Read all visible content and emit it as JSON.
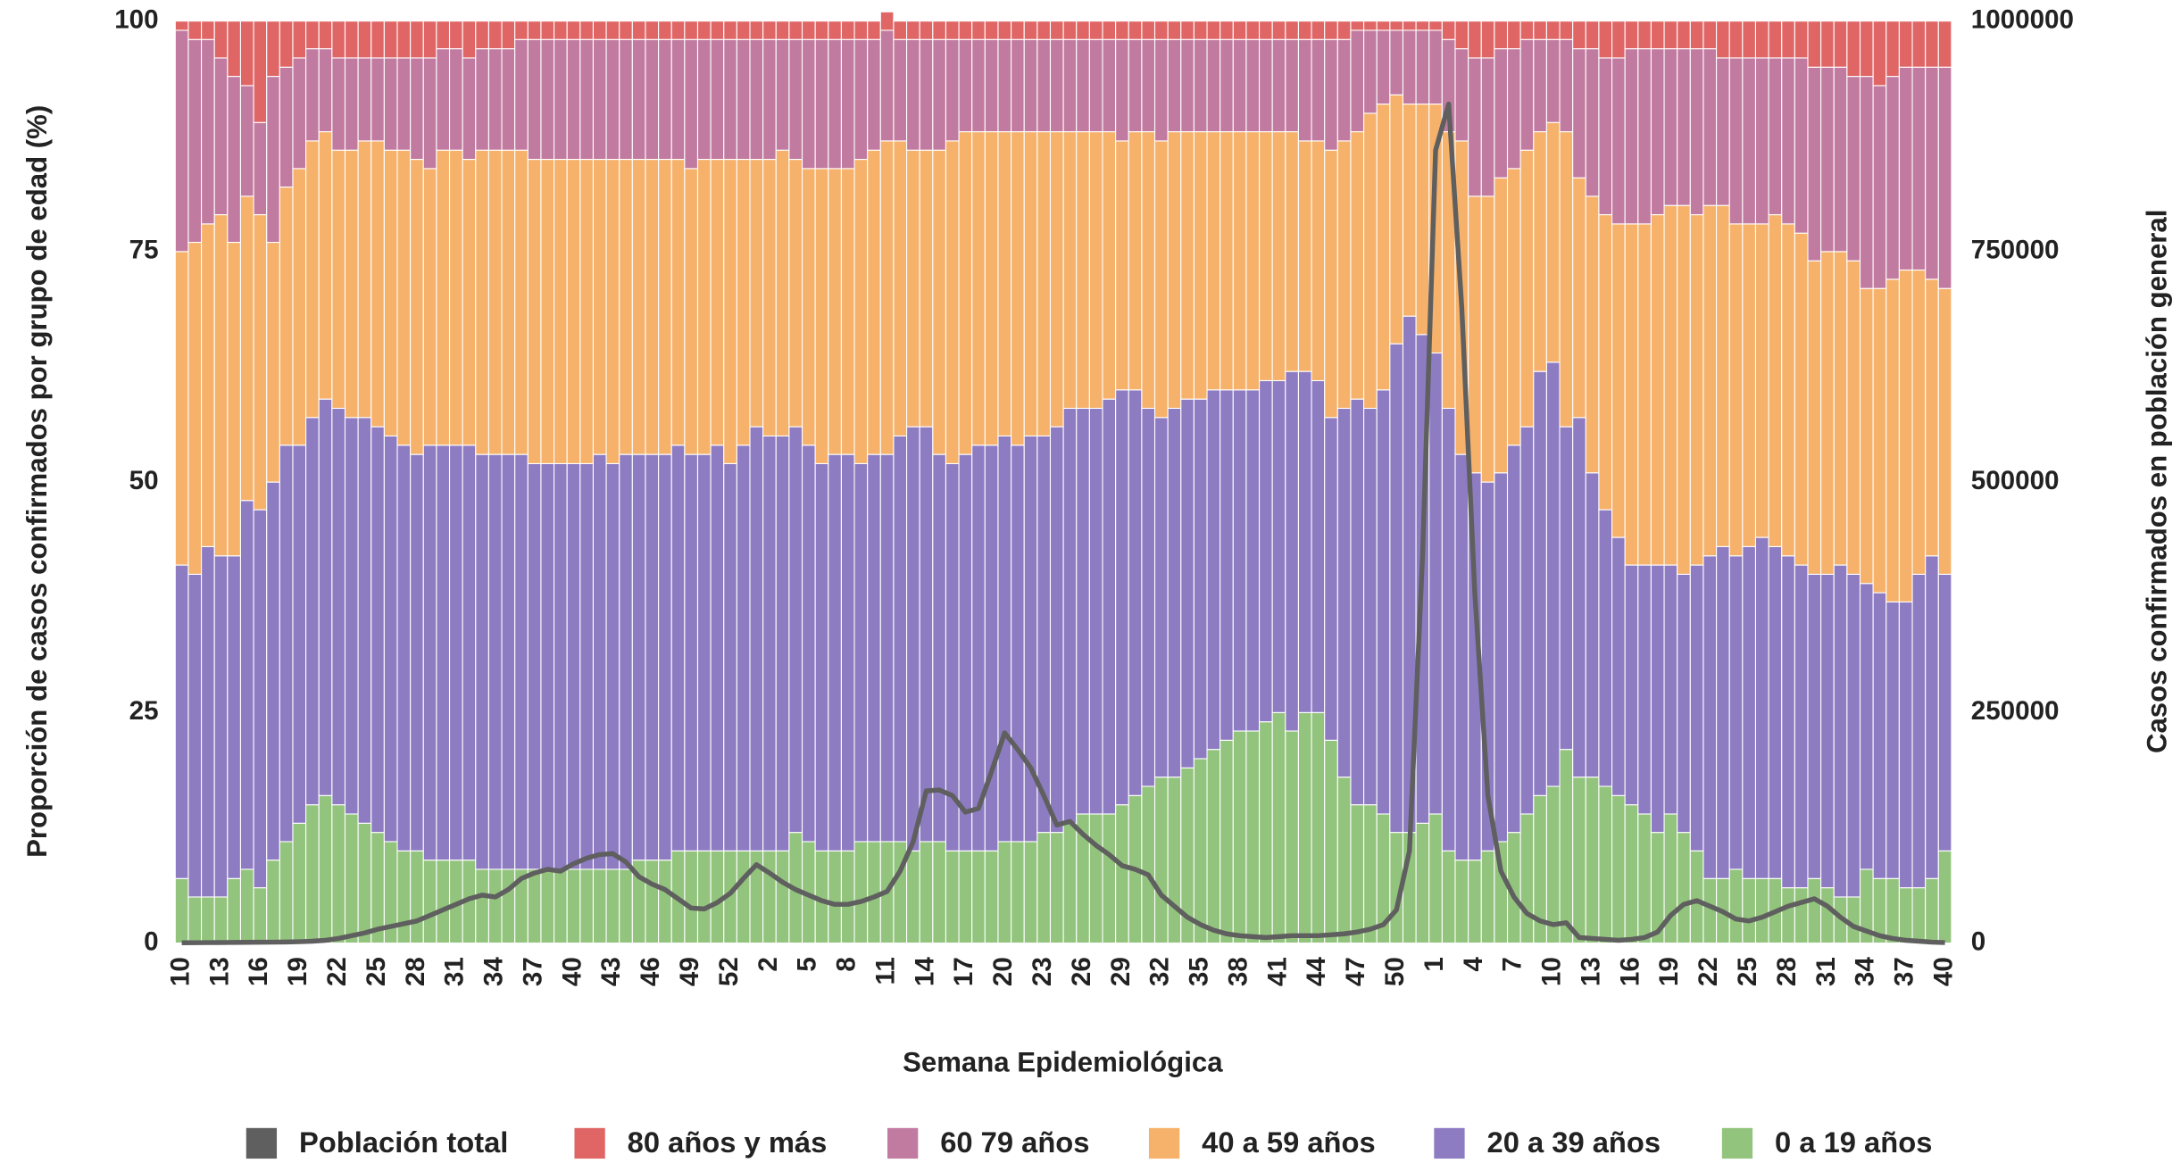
{
  "chart_data": {
    "type": "bar",
    "stacked": true,
    "grid": false,
    "legend": "bottom",
    "x_label": "Semana Epidemiológica",
    "y_label": "Proporción de casos confirmados por grupo de edad (%)",
    "y2_label": "Casos confirmados en población general",
    "ylim": [
      0,
      100
    ],
    "yticks": [
      0,
      25,
      50,
      75,
      100
    ],
    "y2lim": [
      0,
      1000000
    ],
    "y2ticks": [
      0,
      250000,
      500000,
      750000,
      1000000
    ],
    "categories": [
      10,
      null,
      null,
      13,
      null,
      null,
      16,
      null,
      null,
      19,
      null,
      null,
      22,
      null,
      null,
      25,
      null,
      null,
      28,
      null,
      null,
      31,
      null,
      null,
      34,
      null,
      null,
      37,
      null,
      null,
      40,
      null,
      null,
      43,
      null,
      null,
      46,
      null,
      null,
      49,
      null,
      null,
      52,
      null,
      null,
      2,
      null,
      null,
      5,
      null,
      null,
      8,
      null,
      null,
      11,
      null,
      null,
      14,
      null,
      null,
      17,
      null,
      null,
      20,
      null,
      null,
      23,
      null,
      null,
      26,
      null,
      null,
      29,
      null,
      null,
      32,
      null,
      null,
      35,
      null,
      null,
      38,
      null,
      null,
      41,
      null,
      null,
      44,
      null,
      null,
      47,
      null,
      null,
      50,
      null,
      null,
      1,
      null,
      null,
      4,
      null,
      null,
      7,
      null,
      null,
      10,
      null,
      null,
      13,
      null,
      null,
      16,
      null,
      null,
      19,
      null,
      null,
      22,
      null,
      null,
      25,
      null,
      null,
      28,
      null,
      null,
      31,
      null,
      null,
      34,
      null,
      null,
      37,
      null,
      null,
      40
    ],
    "series": [
      {
        "name": "Población total",
        "type": "line",
        "axis": "y2",
        "color": "#5f5f5f",
        "values": [
          300,
          400,
          500,
          600,
          700,
          800,
          900,
          1000,
          1200,
          1500,
          2000,
          3000,
          5000,
          8000,
          11000,
          15000,
          18000,
          21000,
          24000,
          30000,
          36000,
          42000,
          48000,
          52000,
          50000,
          58000,
          70000,
          76000,
          80000,
          78000,
          86000,
          92000,
          96000,
          97000,
          88000,
          72000,
          64000,
          58000,
          48000,
          38000,
          37000,
          44000,
          54000,
          70000,
          85000,
          76000,
          66000,
          58000,
          52000,
          46000,
          42000,
          42000,
          45000,
          50000,
          56000,
          78000,
          110000,
          165000,
          166000,
          160000,
          142000,
          146000,
          186000,
          228000,
          210000,
          190000,
          160000,
          128000,
          132000,
          118000,
          106000,
          96000,
          84000,
          80000,
          74000,
          52000,
          40000,
          28000,
          20000,
          14000,
          10000,
          8000,
          7000,
          6000,
          7000,
          8000,
          8000,
          8000,
          9000,
          10000,
          12000,
          15000,
          20000,
          36000,
          100000,
          420000,
          860000,
          910000,
          690000,
          380000,
          160000,
          78000,
          50000,
          32000,
          24000,
          20000,
          22000,
          6000,
          5000,
          4000,
          3000,
          4000,
          6000,
          12000,
          30000,
          42000,
          46000,
          40000,
          34000,
          26000,
          24000,
          28000,
          34000,
          40000,
          44000,
          48000,
          40000,
          28000,
          18000,
          13000,
          8000,
          5000,
          3000,
          2000,
          1000,
          500
        ]
      },
      {
        "name": "80 años y más",
        "type": "bar",
        "color": "#e06666",
        "values": [
          1,
          2,
          2,
          4,
          6,
          7,
          11,
          6,
          5,
          4,
          3,
          3,
          4,
          4,
          4,
          4,
          4,
          4,
          4,
          4,
          3,
          3,
          4,
          3,
          3,
          3,
          2,
          2,
          2,
          2,
          2,
          2,
          2,
          2,
          2,
          2,
          2,
          2,
          2,
          2,
          2,
          2,
          2,
          2,
          2,
          2,
          2,
          2,
          2,
          2,
          2,
          2,
          2,
          2,
          2,
          2,
          2,
          2,
          2,
          2,
          2,
          2,
          2,
          2,
          2,
          2,
          2,
          2,
          2,
          2,
          2,
          2,
          2,
          2,
          2,
          2,
          2,
          2,
          2,
          2,
          2,
          2,
          2,
          2,
          2,
          2,
          2,
          2,
          2,
          2,
          1,
          1,
          1,
          1,
          1,
          1,
          1,
          2,
          3,
          4,
          4,
          3,
          3,
          2,
          2,
          2,
          2,
          3,
          3,
          4,
          4,
          3,
          3,
          3,
          3,
          3,
          3,
          3,
          4,
          4,
          4,
          4,
          4,
          4,
          4,
          5,
          5,
          5,
          6,
          6,
          7,
          6,
          5,
          5,
          5,
          5
        ]
      },
      {
        "name": "60 79 años",
        "type": "bar",
        "color": "#c27ba0",
        "values": [
          24,
          22,
          20,
          17,
          18,
          12,
          10,
          18,
          13,
          12,
          10,
          9,
          10,
          10,
          9,
          9,
          10,
          10,
          11,
          12,
          11,
          11,
          11,
          11,
          11,
          11,
          12,
          13,
          13,
          13,
          13,
          13,
          13,
          13,
          13,
          13,
          13,
          13,
          13,
          14,
          13,
          13,
          13,
          13,
          13,
          13,
          12,
          13,
          14,
          14,
          14,
          14,
          13,
          12,
          12,
          11,
          12,
          12,
          12,
          11,
          10,
          10,
          10,
          10,
          10,
          10,
          10,
          10,
          10,
          10,
          10,
          10,
          11,
          10,
          10,
          11,
          10,
          10,
          10,
          10,
          10,
          10,
          10,
          10,
          10,
          10,
          11,
          11,
          12,
          11,
          11,
          9,
          8,
          7,
          8,
          8,
          8,
          10,
          10,
          15,
          15,
          14,
          13,
          12,
          10,
          9,
          10,
          14,
          16,
          17,
          18,
          19,
          19,
          18,
          17,
          17,
          18,
          17,
          16,
          18,
          18,
          18,
          17,
          18,
          19,
          21,
          20,
          20,
          20,
          23,
          22,
          22,
          22,
          22,
          23,
          24
        ]
      },
      {
        "name": "40 a 59 años",
        "type": "bar",
        "color": "#f6b26b",
        "values": [
          34,
          36,
          35,
          37,
          34,
          33,
          32,
          26,
          28,
          30,
          30,
          29,
          28,
          29,
          30,
          31,
          31,
          32,
          32,
          30,
          32,
          32,
          31,
          33,
          33,
          33,
          33,
          33,
          33,
          33,
          33,
          33,
          32,
          33,
          32,
          32,
          32,
          32,
          31,
          31,
          32,
          31,
          33,
          31,
          29,
          30,
          31,
          29,
          30,
          32,
          31,
          31,
          33,
          33,
          34,
          32,
          30,
          30,
          33,
          35,
          35,
          34,
          34,
          33,
          34,
          33,
          33,
          32,
          30,
          30,
          30,
          29,
          27,
          28,
          30,
          30,
          30,
          29,
          29,
          28,
          28,
          28,
          28,
          27,
          27,
          26,
          25,
          26,
          29,
          29,
          29,
          32,
          31,
          27,
          23,
          25,
          27,
          30,
          34,
          30,
          31,
          32,
          30,
          30,
          26,
          26,
          32,
          26,
          30,
          32,
          34,
          37,
          37,
          38,
          39,
          40,
          38,
          38,
          37,
          36,
          35,
          34,
          36,
          36,
          36,
          34,
          35,
          34,
          34,
          32,
          33,
          35,
          36,
          33,
          30,
          31
        ]
      },
      {
        "name": "20 a 39 años",
        "type": "bar",
        "color": "#8e7cc3",
        "values": [
          34,
          35,
          38,
          37,
          35,
          40,
          41,
          41,
          43,
          41,
          42,
          43,
          43,
          43,
          44,
          44,
          44,
          44,
          43,
          45,
          45,
          45,
          45,
          45,
          45,
          45,
          45,
          44,
          44,
          44,
          44,
          44,
          45,
          44,
          45,
          44,
          44,
          44,
          44,
          43,
          43,
          44,
          42,
          44,
          46,
          45,
          45,
          44,
          43,
          42,
          43,
          43,
          41,
          42,
          42,
          44,
          46,
          45,
          42,
          42,
          43,
          44,
          44,
          44,
          43,
          44,
          43,
          44,
          45,
          44,
          44,
          45,
          45,
          44,
          41,
          39,
          40,
          40,
          39,
          39,
          38,
          37,
          37,
          37,
          36,
          39,
          37,
          36,
          35,
          40,
          44,
          43,
          46,
          53,
          56,
          53,
          50,
          48,
          44,
          42,
          40,
          40,
          42,
          42,
          46,
          46,
          35,
          39,
          33,
          30,
          28,
          26,
          27,
          29,
          27,
          28,
          31,
          35,
          36,
          34,
          36,
          37,
          36,
          36,
          35,
          33,
          34,
          36,
          35,
          31,
          31,
          30,
          31,
          34,
          35,
          30
        ]
      },
      {
        "name": "0 a 19 años",
        "type": "bar",
        "color": "#93c47d",
        "values": [
          7,
          5,
          5,
          5,
          7,
          8,
          6,
          9,
          11,
          13,
          15,
          16,
          15,
          14,
          13,
          12,
          11,
          10,
          10,
          9,
          9,
          9,
          9,
          8,
          8,
          8,
          8,
          8,
          8,
          8,
          8,
          8,
          8,
          8,
          8,
          9,
          9,
          9,
          10,
          10,
          10,
          10,
          10,
          10,
          10,
          10,
          10,
          12,
          11,
          10,
          10,
          10,
          11,
          11,
          11,
          11,
          10,
          11,
          11,
          10,
          10,
          10,
          10,
          11,
          11,
          11,
          12,
          12,
          13,
          14,
          14,
          14,
          15,
          16,
          17,
          18,
          18,
          19,
          20,
          21,
          22,
          23,
          23,
          24,
          25,
          23,
          25,
          25,
          22,
          18,
          15,
          15,
          14,
          12,
          12,
          13,
          14,
          10,
          9,
          9,
          10,
          11,
          12,
          14,
          16,
          17,
          21,
          18,
          18,
          17,
          16,
          15,
          14,
          12,
          14,
          12,
          10,
          7,
          7,
          8,
          7,
          7,
          7,
          6,
          6,
          7,
          6,
          5,
          5,
          8,
          7,
          7,
          6,
          6,
          7,
          10
        ]
      }
    ]
  }
}
